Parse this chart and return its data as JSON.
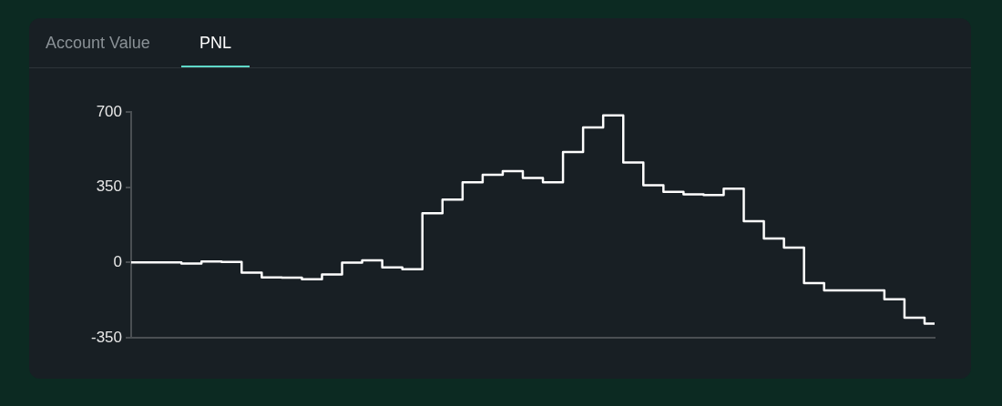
{
  "chart_data": {
    "type": "step",
    "annotations": [
      "Account Value",
      "PNL"
    ],
    "categories": [
      null,
      null,
      null,
      null,
      null,
      null,
      null,
      null,
      null,
      null,
      null,
      null,
      null,
      null,
      null,
      null,
      null,
      null,
      null,
      null,
      null,
      null,
      null,
      null,
      null,
      null,
      null,
      null,
      null,
      null,
      null,
      null,
      null,
      null,
      null,
      null,
      null,
      null,
      null,
      null,
      null
    ],
    "series": [
      {
        "color": "#ffffff",
        "values": [
          0,
          0,
          0,
          -5,
          5,
          2,
          -47,
          -69,
          -71,
          -78,
          -56,
          -1,
          10,
          -23,
          -31,
          229,
          293,
          373,
          408,
          425,
          393,
          373,
          514,
          628,
          684,
          465,
          359,
          328,
          317,
          314,
          343,
          192,
          112,
          69,
          -96,
          -130,
          -130,
          -130,
          -171,
          -257,
          -284
        ]
      }
    ],
    "ylim": [
      -350,
      700
    ],
    "yticks": [
      -350,
      0,
      350,
      700
    ],
    "tick_labels": "y",
    "grid": false,
    "legend": false
  }
}
